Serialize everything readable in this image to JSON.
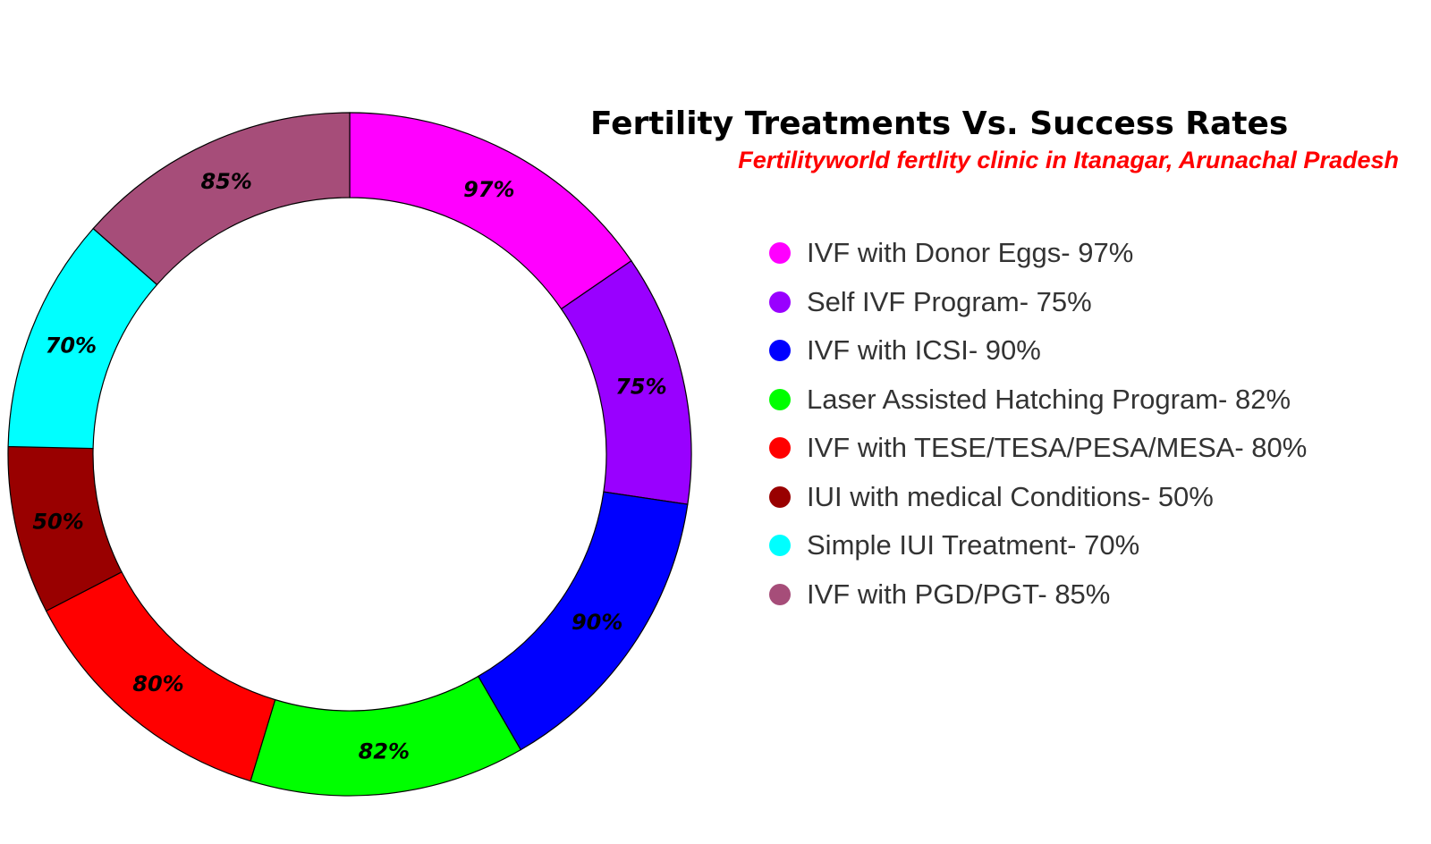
{
  "chart_data": {
    "type": "pie",
    "title": "Fertility Treatments Vs. Success Rates",
    "subtitle": "Fertilityworld fertlity clinic in Itanagar, Arunachal Pradesh",
    "legend_position": "right",
    "slices": [
      {
        "legend": "IVF with Donor Eggs- 97%",
        "value": 97,
        "label": "97%",
        "color": "#ff00ff"
      },
      {
        "legend": "Self IVF Program- 75%",
        "value": 75,
        "label": "75%",
        "color": "#9900ff"
      },
      {
        "legend": "IVF with ICSI- 90%",
        "value": 90,
        "label": "90%",
        "color": "#0000ff"
      },
      {
        "legend": "Laser Assisted Hatching Program- 82%",
        "value": 82,
        "label": "82%",
        "color": "#00ff00"
      },
      {
        "legend": "IVF with TESE/TESA/PESA/MESA- 80%",
        "value": 80,
        "label": "80%",
        "color": "#ff0000"
      },
      {
        "legend": "IUI with medical Conditions- 50%",
        "value": 50,
        "label": "50%",
        "color": "#990000"
      },
      {
        "legend": "Simple IUI Treatment- 70%",
        "value": 70,
        "label": "70%",
        "color": "#00ffff"
      },
      {
        "legend": "IVF with PGD/PGT- 85%",
        "value": 85,
        "label": "85%",
        "color": "#a64d79"
      }
    ]
  }
}
